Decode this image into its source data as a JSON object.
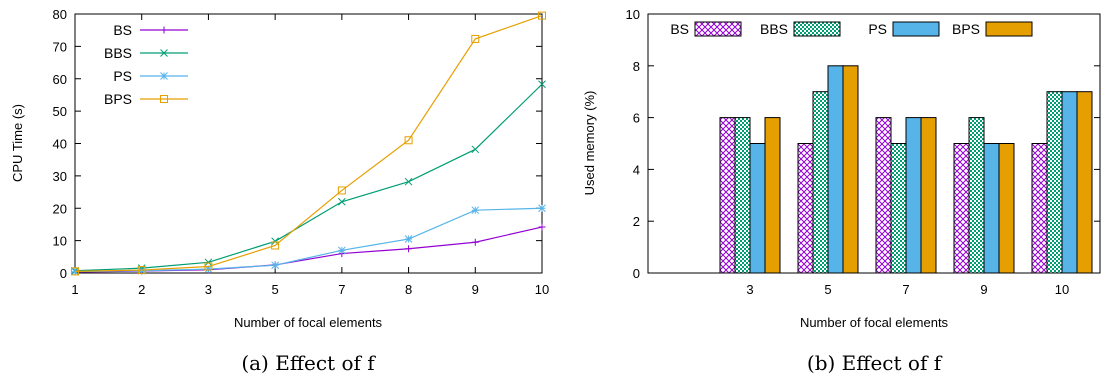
{
  "chart_data": [
    {
      "type": "line",
      "caption": "(a) Effect of f",
      "xlabel": "Number of focal elements",
      "ylabel": "CPU Time (s)",
      "categories": [
        "1",
        "2",
        "3",
        "5",
        "7",
        "8",
        "9",
        "10"
      ],
      "ylim": [
        0,
        80
      ],
      "yticks": [
        0,
        10,
        20,
        30,
        40,
        50,
        60,
        70,
        80
      ],
      "legend_position": "top-left",
      "series": [
        {
          "name": "BS",
          "color": "#9400d3",
          "marker": "plus",
          "values": [
            0.3,
            0.6,
            1.0,
            2.5,
            6.0,
            7.5,
            9.5,
            14.2
          ]
        },
        {
          "name": "BBS",
          "color": "#009e73",
          "marker": "x",
          "values": [
            0.7,
            1.5,
            3.3,
            9.8,
            22.0,
            28.2,
            38.2,
            58.3
          ]
        },
        {
          "name": "PS",
          "color": "#56b4e9",
          "marker": "star",
          "values": [
            0.4,
            0.7,
            1.2,
            2.4,
            7.0,
            10.5,
            19.4,
            20.0
          ]
        },
        {
          "name": "BPS",
          "color": "#e69f00",
          "marker": "square",
          "values": [
            0.5,
            0.9,
            2.0,
            8.5,
            25.5,
            41.0,
            72.3,
            79.5
          ]
        }
      ]
    },
    {
      "type": "bar",
      "caption": "(b) Effect of f",
      "xlabel": "Number of focal elements",
      "ylabel": "Used memory (%)",
      "categories": [
        "3",
        "5",
        "7",
        "9",
        "10"
      ],
      "ylim": [
        0,
        10
      ],
      "yticks": [
        0,
        2,
        4,
        6,
        8,
        10
      ],
      "legend_position": "top",
      "series": [
        {
          "name": "BS",
          "pattern": "crosshatch-purple",
          "color": "#9400d3",
          "values": [
            6,
            5,
            6,
            5,
            5
          ]
        },
        {
          "name": "BBS",
          "pattern": "checker-green",
          "color": "#009e73",
          "values": [
            6,
            7,
            5,
            6,
            7
          ]
        },
        {
          "name": "PS",
          "pattern": "solid-blue",
          "color": "#56b4e9",
          "values": [
            5,
            8,
            6,
            5,
            7
          ]
        },
        {
          "name": "BPS",
          "pattern": "solid-orange",
          "color": "#e69f00",
          "values": [
            6,
            8,
            6,
            5,
            7
          ]
        }
      ]
    }
  ]
}
